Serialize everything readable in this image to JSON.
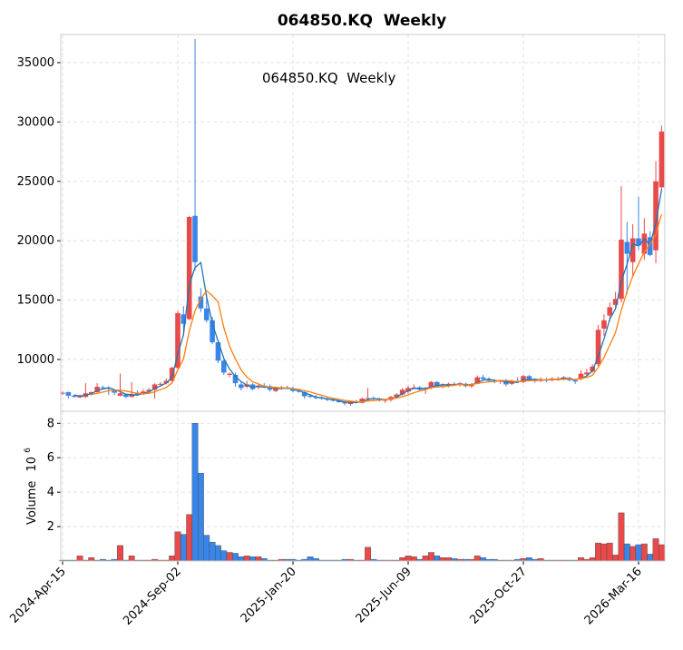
{
  "chart_data": {
    "type": "candlestick",
    "title": "064850.KQ  Weekly",
    "annotation": "064850.KQ  Weekly",
    "ylabel_volume": "Volume",
    "ylabel_volume_exp": "10",
    "ylabel_volume_pow": "6",
    "price_ylim": [
      5640,
      37370
    ],
    "price_ticks": [
      10000,
      15000,
      20000,
      25000,
      30000,
      35000
    ],
    "volume_ylim": [
      0,
      8.7
    ],
    "volume_ticks": [
      2,
      4,
      6,
      8
    ],
    "x_ticks": [
      {
        "index": 0,
        "label": "2024-Apr-15"
      },
      {
        "index": 20,
        "label": "2024-Sep-02"
      },
      {
        "index": 40,
        "label": "2025-Jan-20"
      },
      {
        "index": 60,
        "label": "2025-Jun-09"
      },
      {
        "index": 80,
        "label": "2025-Oct-27"
      },
      {
        "index": 100,
        "label": "2026-Mar-16"
      }
    ],
    "grid": true,
    "colors": {
      "up": "#e84a4a",
      "down": "#3a86e8",
      "ma_short": "#1f77b4",
      "ma_long": "#ff7f0e"
    },
    "moving_averages": [
      {
        "name": "MA short",
        "period": 3
      },
      {
        "name": "MA long",
        "period": 6
      }
    ],
    "ohlcv_fields": [
      "open",
      "high",
      "low",
      "close",
      "volume_millions"
    ],
    "ohlcv": [
      [
        7150,
        7300,
        7000,
        7200,
        0.05
      ],
      [
        7250,
        7300,
        6700,
        6950,
        0.05
      ],
      [
        6950,
        7050,
        6800,
        6850,
        0.05
      ],
      [
        6800,
        7050,
        6750,
        6950,
        0.3
      ],
      [
        6850,
        8000,
        6750,
        7150,
        0.05
      ],
      [
        7100,
        7300,
        6950,
        7250,
        0.2
      ],
      [
        7250,
        8000,
        7200,
        7700,
        0.05
      ],
      [
        7650,
        7800,
        7500,
        7600,
        0.1
      ],
      [
        7600,
        7750,
        7000,
        7550,
        0.05
      ],
      [
        7450,
        7500,
        7000,
        7200,
        0.1
      ],
      [
        6950,
        8800,
        6900,
        7150,
        0.9
      ],
      [
        7050,
        7100,
        6750,
        6850,
        0.05
      ],
      [
        6850,
        8100,
        6800,
        7100,
        0.3
      ],
      [
        7200,
        7400,
        6950,
        7050,
        0.05
      ],
      [
        7100,
        7500,
        7000,
        7300,
        0.05
      ],
      [
        7300,
        7600,
        7100,
        7450,
        0.05
      ],
      [
        7450,
        8000,
        6700,
        7900,
        0.1
      ],
      [
        7900,
        8100,
        7800,
        7950,
        0.05
      ],
      [
        8000,
        8400,
        7900,
        8200,
        0.05
      ],
      [
        8200,
        9400,
        8100,
        9300,
        0.3
      ],
      [
        9300,
        14100,
        9200,
        13900,
        1.7
      ],
      [
        13800,
        14500,
        12000,
        13000,
        1.55
      ],
      [
        13400,
        22100,
        13300,
        22000,
        2.7
      ],
      [
        22100,
        37000,
        17500,
        18200,
        8.0
      ],
      [
        15300,
        16000,
        14000,
        14300,
        5.1
      ],
      [
        14300,
        15500,
        13100,
        13300,
        1.5
      ],
      [
        13300,
        13600,
        11300,
        11450,
        1.1
      ],
      [
        11450,
        11600,
        9700,
        9900,
        0.9
      ],
      [
        9900,
        10100,
        8700,
        8900,
        0.6
      ],
      [
        8700,
        8900,
        8500,
        8800,
        0.5
      ],
      [
        8700,
        8900,
        7700,
        8000,
        0.45
      ],
      [
        7900,
        8100,
        7400,
        7600,
        0.25
      ],
      [
        7700,
        8200,
        7600,
        7900,
        0.3
      ],
      [
        7900,
        8000,
        7400,
        7500,
        0.25
      ],
      [
        7650,
        7900,
        7500,
        7800,
        0.25
      ],
      [
        7800,
        8000,
        7600,
        7700,
        0.15
      ],
      [
        7750,
        7900,
        7300,
        7450,
        0.05
      ],
      [
        7350,
        7700,
        7250,
        7550,
        0.05
      ],
      [
        7600,
        7800,
        7450,
        7650,
        0.1
      ],
      [
        7650,
        7800,
        7500,
        7550,
        0.1
      ],
      [
        7550,
        7700,
        7250,
        7350,
        0.1
      ],
      [
        7350,
        7500,
        7200,
        7300,
        0.05
      ],
      [
        7250,
        7400,
        6700,
        6900,
        0.1
      ],
      [
        6950,
        7100,
        6750,
        6850,
        0.25
      ],
      [
        6850,
        7000,
        6650,
        6750,
        0.15
      ],
      [
        6800,
        6900,
        6600,
        6700,
        0.05
      ],
      [
        6700,
        6800,
        6500,
        6600,
        0.05
      ],
      [
        6600,
        6700,
        6450,
        6550,
        0.05
      ],
      [
        6550,
        6650,
        6350,
        6400,
        0.05
      ],
      [
        6400,
        6500,
        6150,
        6300,
        0.1
      ],
      [
        6250,
        6500,
        6100,
        6450,
        0.1
      ],
      [
        6450,
        6600,
        6300,
        6350,
        0.05
      ],
      [
        6350,
        6800,
        6300,
        6700,
        0.05
      ],
      [
        6700,
        7600,
        6600,
        6750,
        0.8
      ],
      [
        6750,
        6900,
        6550,
        6700,
        0.1
      ],
      [
        6700,
        6800,
        6450,
        6550,
        0.05
      ],
      [
        6550,
        6700,
        6350,
        6600,
        0.05
      ],
      [
        6600,
        6950,
        6450,
        6850,
        0.05
      ],
      [
        6850,
        7150,
        6700,
        7050,
        0.05
      ],
      [
        7050,
        7600,
        6950,
        7450,
        0.2
      ],
      [
        7300,
        7800,
        7100,
        7600,
        0.3
      ],
      [
        7600,
        7900,
        7500,
        7650,
        0.25
      ],
      [
        7650,
        7750,
        7350,
        7450,
        0.1
      ],
      [
        7450,
        7700,
        7100,
        7550,
        0.3
      ],
      [
        7600,
        8200,
        7500,
        8100,
        0.5
      ],
      [
        8100,
        8200,
        7700,
        7750,
        0.3
      ],
      [
        7750,
        8000,
        7600,
        7800,
        0.2
      ],
      [
        7800,
        8050,
        7650,
        7950,
        0.2
      ],
      [
        7950,
        8100,
        7750,
        7850,
        0.15
      ],
      [
        7850,
        8100,
        7700,
        8000,
        0.1
      ],
      [
        7950,
        8050,
        7650,
        7750,
        0.1
      ],
      [
        7750,
        8000,
        7600,
        7900,
        0.1
      ],
      [
        7950,
        8650,
        7900,
        8500,
        0.3
      ],
      [
        8500,
        8700,
        8300,
        8350,
        0.2
      ],
      [
        8350,
        8500,
        8100,
        8200,
        0.1
      ],
      [
        8200,
        8350,
        8000,
        8150,
        0.1
      ],
      [
        8150,
        8300,
        7950,
        8250,
        0.05
      ],
      [
        8250,
        8350,
        7750,
        7900,
        0.05
      ],
      [
        7950,
        8300,
        7850,
        8200,
        0.05
      ],
      [
        8200,
        8500,
        8050,
        8100,
        0.1
      ],
      [
        8100,
        8700,
        8000,
        8600,
        0.15
      ],
      [
        8600,
        8700,
        8150,
        8250,
        0.2
      ],
      [
        8250,
        8400,
        8050,
        8200,
        0.1
      ],
      [
        8200,
        8500,
        8100,
        8350,
        0.15
      ],
      [
        8300,
        8450,
        8100,
        8250,
        0.05
      ],
      [
        8250,
        8500,
        8150,
        8400,
        0.05
      ],
      [
        8300,
        8550,
        8200,
        8350,
        0.05
      ],
      [
        8350,
        8600,
        8250,
        8500,
        0.05
      ],
      [
        8450,
        8550,
        8150,
        8250,
        0.05
      ],
      [
        8250,
        8350,
        7950,
        8150,
        0.05
      ],
      [
        8350,
        9100,
        8250,
        8800,
        0.2
      ],
      [
        8750,
        9200,
        8600,
        8900,
        0.1
      ],
      [
        9000,
        9600,
        8900,
        9400,
        0.2
      ],
      [
        9600,
        12900,
        9400,
        12500,
        1.05
      ],
      [
        12600,
        13800,
        12000,
        13300,
        1.0
      ],
      [
        13700,
        14800,
        13200,
        14400,
        1.05
      ],
      [
        14600,
        15700,
        14300,
        15100,
        0.35
      ],
      [
        15100,
        24600,
        14800,
        20100,
        2.8
      ],
      [
        19900,
        21600,
        15500,
        18900,
        1.0
      ],
      [
        18200,
        21400,
        17000,
        20200,
        0.85
      ],
      [
        20200,
        23700,
        19200,
        19600,
        0.95
      ],
      [
        18900,
        21900,
        18400,
        20600,
        1.0
      ],
      [
        20300,
        20800,
        18700,
        18800,
        0.4
      ],
      [
        19200,
        26700,
        18100,
        25000,
        1.3
      ],
      [
        24500,
        29700,
        24300,
        29200,
        0.95
      ]
    ]
  }
}
